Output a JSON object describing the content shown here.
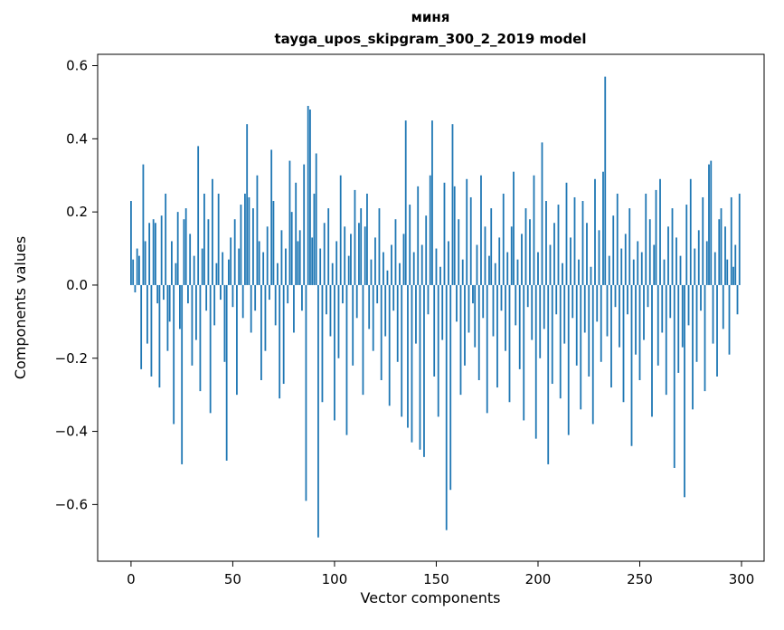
{
  "chart_data": {
    "type": "bar",
    "title": "миня",
    "subtitle": "tayga_upos_skipgram_300_2_2019 model",
    "xlabel": "Vector components",
    "ylabel": "Components values",
    "bar_color": "#1f77b4",
    "xlim": [
      -16.4,
      311.1
    ],
    "ylim": [
      -0.755,
      0.631
    ],
    "grid": false,
    "legend": "none",
    "x_ticks": [
      {
        "value": 0,
        "label": "0"
      },
      {
        "value": 50,
        "label": "50"
      },
      {
        "value": 100,
        "label": "100"
      },
      {
        "value": 150,
        "label": "150"
      },
      {
        "value": 200,
        "label": "200"
      },
      {
        "value": 250,
        "label": "250"
      },
      {
        "value": 300,
        "label": "300"
      }
    ],
    "y_ticks": [
      {
        "value": 0.6,
        "label": "0.6"
      },
      {
        "value": 0.4,
        "label": "0.4"
      },
      {
        "value": 0.2,
        "label": "0.2"
      },
      {
        "value": 0.0,
        "label": "0.0"
      },
      {
        "value": -0.2,
        "label": "−0.2"
      },
      {
        "value": -0.4,
        "label": "−0.4"
      },
      {
        "value": -0.6,
        "label": "−0.6"
      }
    ],
    "values": [
      0.23,
      0.07,
      -0.02,
      0.1,
      0.08,
      -0.23,
      0.33,
      0.12,
      -0.16,
      0.17,
      -0.25,
      0.18,
      0.17,
      -0.05,
      -0.28,
      0.19,
      -0.04,
      0.25,
      -0.18,
      -0.1,
      0.12,
      -0.38,
      0.06,
      0.2,
      -0.12,
      -0.49,
      0.18,
      0.21,
      -0.05,
      0.14,
      -0.22,
      0.08,
      -0.15,
      0.38,
      -0.29,
      0.1,
      0.25,
      -0.07,
      0.18,
      -0.35,
      0.29,
      -0.11,
      0.06,
      0.25,
      -0.04,
      0.09,
      -0.21,
      -0.48,
      0.07,
      0.13,
      -0.06,
      0.18,
      -0.3,
      0.1,
      0.22,
      -0.09,
      0.25,
      0.44,
      0.24,
      -0.13,
      0.21,
      -0.07,
      0.3,
      0.12,
      -0.26,
      0.09,
      -0.18,
      0.16,
      -0.04,
      0.37,
      0.23,
      -0.11,
      0.06,
      -0.31,
      0.15,
      -0.27,
      0.1,
      -0.05,
      0.34,
      0.2,
      -0.13,
      0.28,
      0.12,
      0.15,
      -0.07,
      0.33,
      -0.59,
      0.49,
      0.48,
      0.13,
      0.25,
      0.36,
      -0.69,
      0.1,
      -0.32,
      0.17,
      -0.08,
      0.21,
      -0.14,
      0.06,
      -0.37,
      0.12,
      -0.2,
      0.3,
      -0.05,
      0.16,
      -0.41,
      0.08,
      0.14,
      -0.22,
      0.26,
      -0.09,
      0.17,
      0.21,
      -0.3,
      0.16,
      0.25,
      -0.12,
      0.07,
      -0.18,
      0.13,
      -0.05,
      0.21,
      -0.26,
      0.09,
      -0.14,
      0.04,
      -0.33,
      0.11,
      -0.07,
      0.18,
      -0.21,
      0.06,
      -0.36,
      0.14,
      0.45,
      -0.39,
      0.22,
      -0.43,
      0.09,
      -0.16,
      0.27,
      -0.45,
      0.11,
      -0.47,
      0.19,
      -0.08,
      0.3,
      0.45,
      -0.25,
      0.1,
      -0.36,
      0.05,
      -0.15,
      0.28,
      -0.67,
      0.12,
      -0.56,
      0.44,
      0.27,
      -0.1,
      0.18,
      -0.3,
      0.07,
      -0.22,
      0.29,
      -0.13,
      0.24,
      -0.05,
      -0.17,
      0.11,
      -0.26,
      0.3,
      -0.09,
      0.16,
      -0.35,
      0.08,
      0.21,
      -0.14,
      0.06,
      -0.28,
      0.13,
      -0.07,
      0.25,
      -0.18,
      0.09,
      -0.32,
      0.16,
      0.31,
      -0.11,
      0.07,
      -0.23,
      0.14,
      -0.37,
      0.21,
      -0.06,
      0.18,
      -0.15,
      0.3,
      -0.42,
      0.09,
      -0.2,
      0.39,
      -0.12,
      0.23,
      -0.49,
      0.11,
      -0.27,
      0.17,
      -0.08,
      0.22,
      -0.31,
      0.06,
      -0.16,
      0.28,
      -0.41,
      0.13,
      -0.09,
      0.24,
      -0.22,
      0.07,
      -0.34,
      0.23,
      -0.13,
      0.17,
      -0.25,
      0.05,
      -0.38,
      0.29,
      -0.1,
      0.15,
      -0.21,
      0.31,
      0.57,
      -0.14,
      0.08,
      -0.28,
      0.19,
      -0.06,
      0.25,
      -0.17,
      0.1,
      -0.32,
      0.14,
      -0.08,
      0.21,
      -0.44,
      0.07,
      -0.19,
      0.12,
      -0.26,
      0.09,
      -0.15,
      0.25,
      -0.06,
      0.18,
      -0.36,
      0.11,
      0.26,
      -0.22,
      0.29,
      -0.13,
      0.07,
      -0.3,
      0.16,
      -0.09,
      0.21,
      -0.5,
      0.13,
      -0.24,
      0.08,
      -0.17,
      -0.58,
      0.22,
      -0.11,
      0.29,
      -0.34,
      0.1,
      -0.21,
      0.15,
      -0.07,
      0.24,
      -0.29,
      0.12,
      0.33,
      0.34,
      -0.16,
      0.09,
      -0.25,
      0.18,
      0.21,
      -0.12,
      0.16,
      0.07,
      -0.19,
      0.24,
      0.05,
      0.11,
      -0.08,
      0.25
    ]
  }
}
